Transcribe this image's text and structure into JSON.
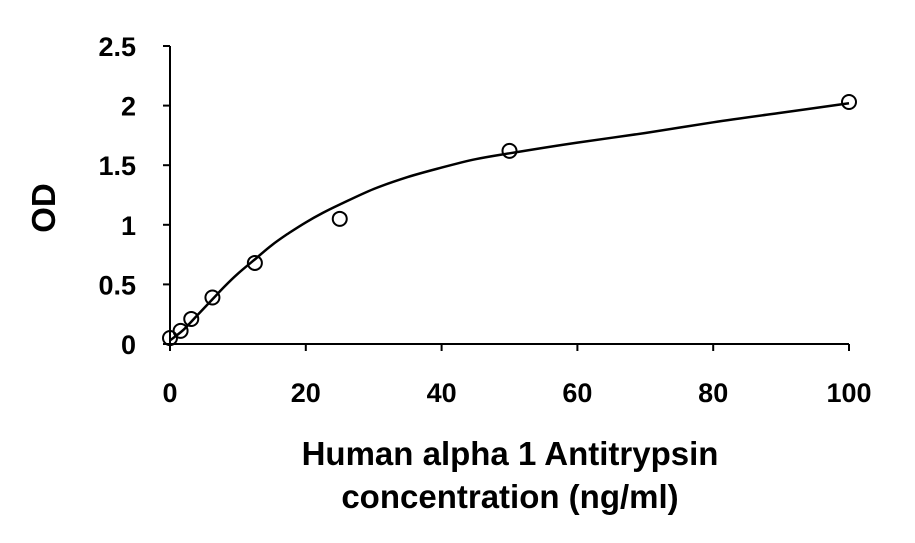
{
  "chart_data": {
    "type": "scatter",
    "title": "",
    "ylabel": "OD",
    "xlabel_lines": [
      "Human alpha 1 Antitrypsin",
      "concentration (ng/ml)"
    ],
    "xlim": [
      0,
      100
    ],
    "ylim": [
      0,
      2.5
    ],
    "x_ticks": [
      0,
      20,
      40,
      60,
      80,
      100
    ],
    "x_tick_labels": [
      "0",
      "20",
      "40",
      "60",
      "80",
      "100"
    ],
    "y_ticks": [
      0,
      0.5,
      1,
      1.5,
      2,
      2.5
    ],
    "y_tick_labels": [
      "0",
      "0.5",
      "1",
      "1.5",
      "2",
      "2.5"
    ],
    "grid": false,
    "legend": "none",
    "points": [
      {
        "x": 0,
        "y": 0.05
      },
      {
        "x": 1.56,
        "y": 0.11
      },
      {
        "x": 3.13,
        "y": 0.21
      },
      {
        "x": 6.25,
        "y": 0.39
      },
      {
        "x": 12.5,
        "y": 0.68
      },
      {
        "x": 25,
        "y": 1.05
      },
      {
        "x": 50,
        "y": 1.62
      },
      {
        "x": 100,
        "y": 2.03
      }
    ],
    "fit_curve": [
      {
        "x": 0,
        "y": 0.03
      },
      {
        "x": 2,
        "y": 0.12
      },
      {
        "x": 4,
        "y": 0.24
      },
      {
        "x": 6,
        "y": 0.36
      },
      {
        "x": 8,
        "y": 0.48
      },
      {
        "x": 10,
        "y": 0.59
      },
      {
        "x": 12.5,
        "y": 0.71
      },
      {
        "x": 15,
        "y": 0.83
      },
      {
        "x": 17.5,
        "y": 0.93
      },
      {
        "x": 20,
        "y": 1.02
      },
      {
        "x": 22.5,
        "y": 1.1
      },
      {
        "x": 25,
        "y": 1.17
      },
      {
        "x": 30,
        "y": 1.3
      },
      {
        "x": 35,
        "y": 1.4
      },
      {
        "x": 40,
        "y": 1.48
      },
      {
        "x": 45,
        "y": 1.55
      },
      {
        "x": 50,
        "y": 1.6
      },
      {
        "x": 60,
        "y": 1.69
      },
      {
        "x": 70,
        "y": 1.77
      },
      {
        "x": 80,
        "y": 1.86
      },
      {
        "x": 90,
        "y": 1.94
      },
      {
        "x": 100,
        "y": 2.02
      }
    ]
  }
}
